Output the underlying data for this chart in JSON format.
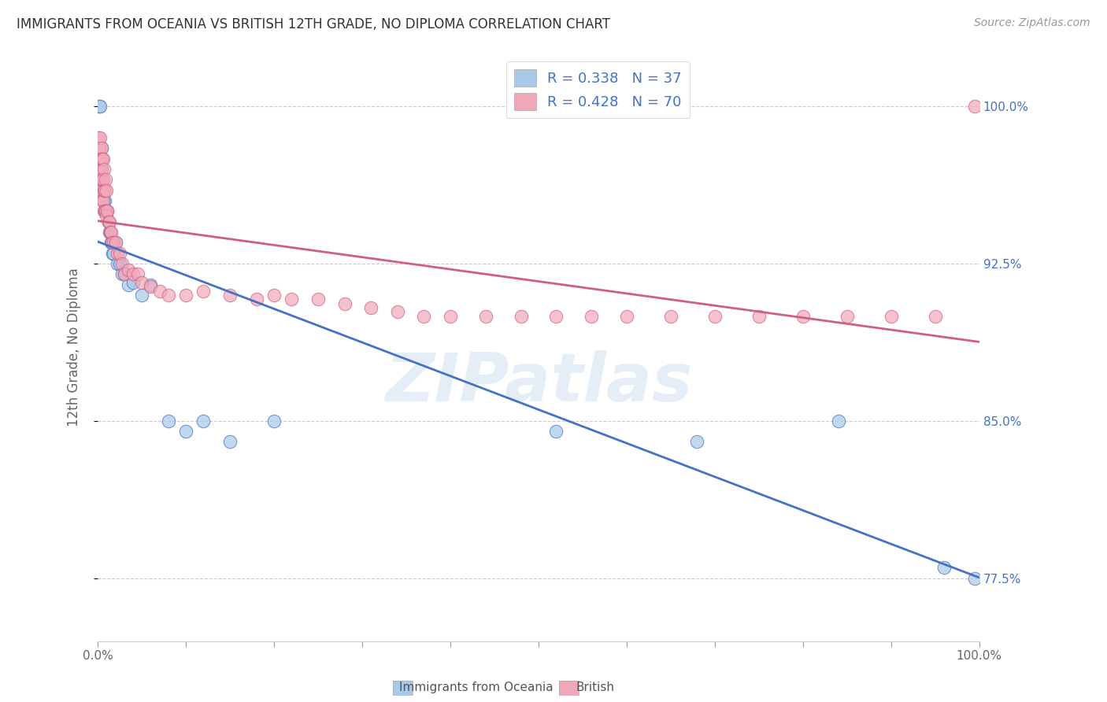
{
  "title": "IMMIGRANTS FROM OCEANIA VS BRITISH 12TH GRADE, NO DIPLOMA CORRELATION CHART",
  "source": "Source: ZipAtlas.com",
  "ylabel": "12th Grade, No Diploma",
  "legend_label1": "Immigrants from Oceania",
  "legend_label2": "British",
  "R1": 0.338,
  "N1": 37,
  "R2": 0.428,
  "N2": 70,
  "color_blue": "#a8c8e8",
  "color_pink": "#f0a8b8",
  "color_blue_line": "#4472c4",
  "color_pink_line": "#d06080",
  "watermark_text": "ZIPatlas",
  "ytick_labels": [
    "77.5%",
    "85.0%",
    "92.5%",
    "100.0%"
  ],
  "ytick_values": [
    0.775,
    0.85,
    0.925,
    1.0
  ],
  "xlim": [
    0.0,
    1.0
  ],
  "ylim": [
    0.745,
    1.025
  ],
  "blue_x": [
    0.002,
    0.003,
    0.004,
    0.004,
    0.005,
    0.006,
    0.007,
    0.008,
    0.009,
    0.01,
    0.011,
    0.012,
    0.013,
    0.014,
    0.015,
    0.016,
    0.017,
    0.018,
    0.02,
    0.022,
    0.025,
    0.028,
    0.03,
    0.035,
    0.04,
    0.05,
    0.06,
    0.08,
    0.1,
    0.12,
    0.15,
    0.2,
    0.52,
    0.68,
    0.84,
    0.96,
    0.995
  ],
  "blue_y": [
    1.0,
    1.0,
    0.98,
    0.97,
    0.96,
    0.96,
    0.955,
    0.955,
    0.95,
    0.95,
    0.95,
    0.945,
    0.94,
    0.94,
    0.935,
    0.935,
    0.93,
    0.93,
    0.935,
    0.925,
    0.925,
    0.92,
    0.92,
    0.915,
    0.916,
    0.91,
    0.915,
    0.85,
    0.845,
    0.85,
    0.84,
    0.85,
    0.845,
    0.84,
    0.85,
    0.78,
    0.775
  ],
  "pink_x": [
    0.001,
    0.001,
    0.002,
    0.002,
    0.002,
    0.003,
    0.003,
    0.003,
    0.004,
    0.004,
    0.004,
    0.005,
    0.005,
    0.005,
    0.006,
    0.006,
    0.006,
    0.007,
    0.007,
    0.007,
    0.008,
    0.008,
    0.009,
    0.009,
    0.01,
    0.01,
    0.011,
    0.012,
    0.013,
    0.014,
    0.015,
    0.016,
    0.018,
    0.02,
    0.022,
    0.025,
    0.028,
    0.03,
    0.035,
    0.04,
    0.045,
    0.05,
    0.06,
    0.07,
    0.08,
    0.1,
    0.12,
    0.15,
    0.18,
    0.2,
    0.22,
    0.25,
    0.28,
    0.31,
    0.34,
    0.37,
    0.4,
    0.44,
    0.48,
    0.52,
    0.56,
    0.6,
    0.65,
    0.7,
    0.75,
    0.8,
    0.85,
    0.9,
    0.95,
    0.995
  ],
  "pink_y": [
    0.985,
    0.975,
    0.98,
    0.97,
    0.96,
    0.985,
    0.975,
    0.965,
    0.98,
    0.975,
    0.96,
    0.975,
    0.965,
    0.955,
    0.975,
    0.965,
    0.955,
    0.97,
    0.96,
    0.95,
    0.96,
    0.95,
    0.965,
    0.95,
    0.96,
    0.948,
    0.95,
    0.945,
    0.945,
    0.94,
    0.94,
    0.935,
    0.935,
    0.935,
    0.93,
    0.93,
    0.925,
    0.92,
    0.922,
    0.92,
    0.92,
    0.916,
    0.914,
    0.912,
    0.91,
    0.91,
    0.912,
    0.91,
    0.908,
    0.91,
    0.908,
    0.908,
    0.906,
    0.904,
    0.902,
    0.9,
    0.9,
    0.9,
    0.9,
    0.9,
    0.9,
    0.9,
    0.9,
    0.9,
    0.9,
    0.9,
    0.9,
    0.9,
    0.9,
    1.0
  ]
}
